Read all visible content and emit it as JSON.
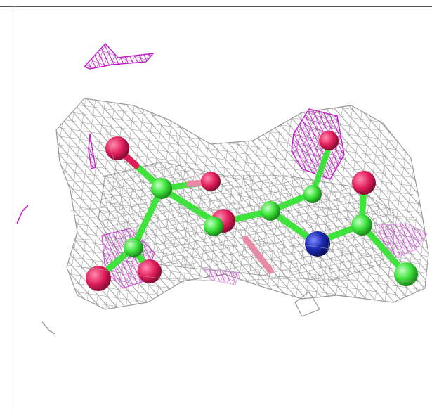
{
  "viewer": {
    "background_color": "#ffffff",
    "colors": {
      "mesh_2fofc": "#9a9a9a",
      "mesh_fofc": "#c21ec8",
      "carbon": "#3ee43c",
      "oxygen": "#e01c5a",
      "nitrogen": "#1c2ab4",
      "pink_bond": "#e88aa6"
    },
    "icons": [
      "molecule-icon",
      "electron-density-mesh-icon"
    ]
  }
}
